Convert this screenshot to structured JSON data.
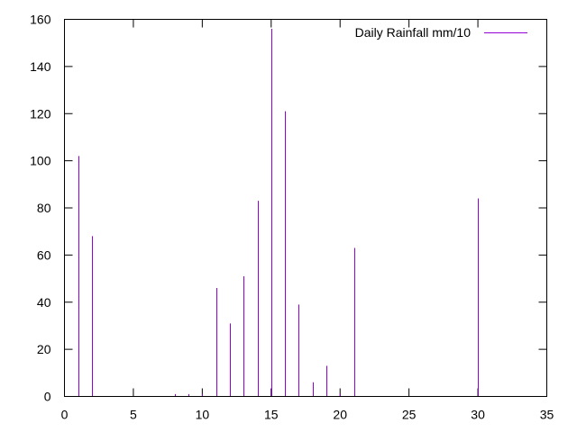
{
  "chart_data": {
    "type": "bar",
    "style": "impulses",
    "xlim": [
      0,
      35
    ],
    "ylim": [
      0,
      160
    ],
    "x_ticks": [
      0,
      5,
      10,
      15,
      20,
      25,
      30,
      35
    ],
    "y_ticks": [
      0,
      20,
      40,
      60,
      80,
      100,
      120,
      140,
      160
    ],
    "grid": false,
    "legend_position": "top-right",
    "series": [
      {
        "name": "Daily Rainfall mm/10",
        "color": "#9400d3",
        "points": [
          {
            "x": 1,
            "y": 102
          },
          {
            "x": 2,
            "y": 68
          },
          {
            "x": 8,
            "y": 1
          },
          {
            "x": 9,
            "y": 1
          },
          {
            "x": 10,
            "y": 1
          },
          {
            "x": 11,
            "y": 46
          },
          {
            "x": 12,
            "y": 31
          },
          {
            "x": 13,
            "y": 51
          },
          {
            "x": 14,
            "y": 83
          },
          {
            "x": 15,
            "y": 156
          },
          {
            "x": 16,
            "y": 121
          },
          {
            "x": 17,
            "y": 39
          },
          {
            "x": 18,
            "y": 6
          },
          {
            "x": 19,
            "y": 13
          },
          {
            "x": 20,
            "y": 1
          },
          {
            "x": 21,
            "y": 63
          },
          {
            "x": 30,
            "y": 84
          }
        ]
      }
    ]
  }
}
